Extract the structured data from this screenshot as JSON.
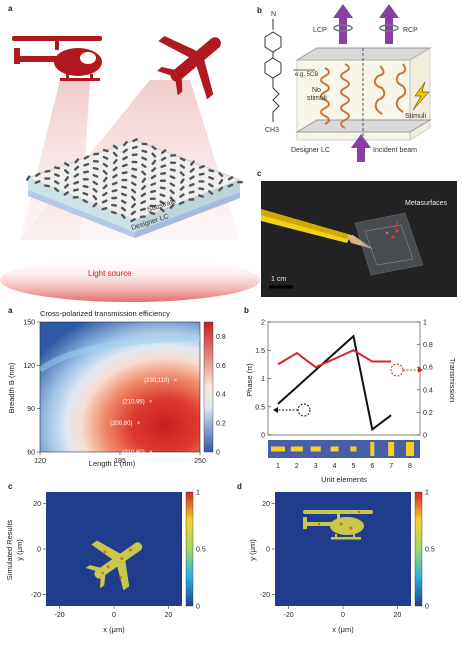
{
  "panel_labels": [
    "a",
    "b",
    "c",
    "a",
    "b",
    "c",
    "d"
  ],
  "top_a": {
    "substrate": "Substrate",
    "designer_lc": "Designer LC",
    "light_source": "Light source"
  },
  "top_b": {
    "lcp": "LCP",
    "rcp": "RCP",
    "eg": "e.g. 5CB",
    "no_stimuli": "No\nstimuli",
    "stimuli": "Stimuli",
    "designer_lc": "Designer LC",
    "incident_beam": "Incident beam",
    "ch3": "CH3",
    "n": "N"
  },
  "top_c": {
    "metasurfaces": "Metasurfaces",
    "scale": "1 cm"
  },
  "colors": {
    "red": "#e03030",
    "dark_red": "#b0191e",
    "purple": "#8a3fa3",
    "heat_red": "#d9232a",
    "heat_blue": "#1f3d8c"
  },
  "chart_data": [
    {
      "type": "heatmap",
      "title": "Cross-polarized transmission efficiency",
      "xlabel": "Length L (nm)",
      "ylabel": "Breadth B (nm)",
      "xticks": [
        "120",
        "185",
        "250"
      ],
      "yticks": [
        "60",
        "90",
        "120",
        "150"
      ],
      "colorbar_ticks": [
        "0",
        "0.2",
        "0.4",
        "0.6",
        "0.8"
      ],
      "points": [
        {
          "label": "(230,110)",
          "x": 230,
          "y": 110
        },
        {
          "label": "(210,95)",
          "x": 210,
          "y": 95
        },
        {
          "label": "(200,80)",
          "x": 200,
          "y": 80
        },
        {
          "label": "(210,60)",
          "x": 210,
          "y": 60
        }
      ]
    },
    {
      "type": "line",
      "xlabel": "Unit elements",
      "ylabel_left": "Phase (π)",
      "ylabel_right": "Transmission",
      "categories": [
        "1",
        "2",
        "3",
        "4",
        "5",
        "6",
        "7",
        "8"
      ],
      "yticks_left": [
        "0",
        "0.5",
        "1",
        "1.5",
        "2"
      ],
      "yticks_right": [
        "0",
        "0.2",
        "0.4",
        "0.6",
        "0.8",
        "1"
      ],
      "series": [
        {
          "values": [
            0.55,
            0.85,
            1.15,
            1.45,
            1.75,
            0.1,
            0.35,
            null
          ]
        },
        {
          "values": [
            1.25,
            1.45,
            1.2,
            1.35,
            1.5,
            1.3,
            1.3,
            null
          ]
        }
      ]
    },
    {
      "type": "heatmap",
      "ylabel": "Simulated Results",
      "ylabel2": "y (μm)",
      "xlabel": "x (μm)",
      "xticks": [
        "-20",
        "0",
        "20"
      ],
      "yticks": [
        "20",
        "0",
        "-20"
      ],
      "colorbar_ticks": [
        "1",
        "0.5",
        "0"
      ]
    },
    {
      "type": "heatmap",
      "ylabel": "y (μm)",
      "xlabel": "x (μm)",
      "xticks": [
        "-20",
        "0",
        "20"
      ],
      "yticks": [
        "20",
        "0",
        "-20"
      ],
      "colorbar_ticks": [
        "1",
        "0.5",
        "0"
      ]
    }
  ]
}
